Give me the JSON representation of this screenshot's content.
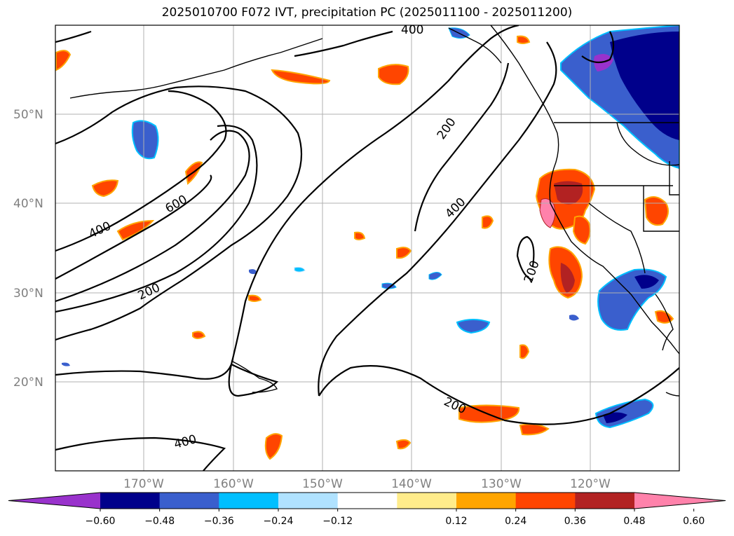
{
  "title": "2025010700 F072 IVT, precipitation PC (2025011100 - 2025011200)",
  "lat_labels": [
    "50°N",
    "40°N",
    "30°N",
    "20°N"
  ],
  "lon_labels": [
    "170°W",
    "160°W",
    "150°W",
    "140°W",
    "130°W",
    "120°W"
  ],
  "contour_labels": [
    "400",
    "600",
    "200",
    "400",
    "200",
    "400",
    "200",
    "200",
    "400"
  ],
  "colorbar": {
    "colors": [
      "#9932CC",
      "#00008B",
      "#3A5FCD",
      "#00BFFF",
      "#B0E2FF",
      "#FFFFFF",
      "#FFEC8B",
      "#FFA500",
      "#FF4500",
      "#B22222",
      "#FF82AB"
    ],
    "tick_labels": [
      "−0.60",
      "−0.48",
      "−0.36",
      "−0.24",
      "−0.12",
      "0.12",
      "0.24",
      "0.36",
      "0.48",
      "0.60"
    ]
  }
}
